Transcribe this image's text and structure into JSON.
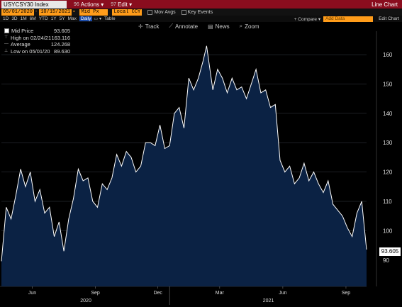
{
  "header": {
    "ticker": "USYCSY30 Index",
    "actions_num": "96",
    "actions_label": "Actions ▾",
    "edit_num": "97",
    "edit_label": "Edit ▾",
    "title": "Line Chart"
  },
  "controls": {
    "start_date": "05/01/2020",
    "end_date": "10/15/2021",
    "field": "Mid Px",
    "currency": "Local CCY",
    "mov_avgs": "Mov Avgs",
    "key_events": "Key Events",
    "periods": [
      "1D",
      "3D",
      "1M",
      "6M",
      "YTD",
      "1Y",
      "5Y",
      "Max"
    ],
    "frequency": "Daily",
    "table_label": "Table",
    "compare": "+ Compare ▾",
    "add_data": "Add Data",
    "edit_chart": "Edit Chart"
  },
  "toolbar": {
    "track": "Track",
    "annotate": "Annotate",
    "news": "News",
    "zoom": "Zoom"
  },
  "legend": {
    "mid_label": "Mid Price",
    "mid_value": "93.605",
    "high_label": "High on 02/24/21",
    "high_value": "163.116",
    "avg_label": "Average",
    "avg_value": "124.268",
    "low_label": "Low on 05/01/20",
    "low_value": "89.630"
  },
  "chart_data": {
    "type": "area",
    "y_ticks": [
      90,
      100,
      110,
      120,
      130,
      140,
      150,
      160
    ],
    "ylim": [
      81,
      168
    ],
    "last_value": "93.605",
    "month_labels": [
      "Jun",
      "Sep",
      "Dec",
      "Mar",
      "Jun",
      "Sep"
    ],
    "year_labels": [
      "2020",
      "2021"
    ],
    "colors": {
      "fill": "#0b2244",
      "line": "#ffffff",
      "grid": "#3a3f4a"
    },
    "series": [
      {
        "x": [
          "2020-05-01",
          "2020-05-08",
          "2020-05-15",
          "2020-05-22",
          "2020-05-29",
          "2020-06-05",
          "2020-06-12",
          "2020-06-19",
          "2020-06-26",
          "2020-07-03",
          "2020-07-10",
          "2020-07-17",
          "2020-07-24",
          "2020-07-31",
          "2020-08-07",
          "2020-08-14",
          "2020-08-21",
          "2020-08-28",
          "2020-09-04",
          "2020-09-11",
          "2020-09-18",
          "2020-09-25",
          "2020-10-02",
          "2020-10-09",
          "2020-10-16",
          "2020-10-23",
          "2020-10-30",
          "2020-11-06",
          "2020-11-13",
          "2020-11-20",
          "2020-11-27",
          "2020-12-04",
          "2020-12-11",
          "2020-12-18",
          "2020-12-25",
          "2021-01-01",
          "2021-01-08",
          "2021-01-15",
          "2021-01-22",
          "2021-01-29",
          "2021-02-05",
          "2021-02-12",
          "2021-02-19",
          "2021-02-24",
          "2021-03-05",
          "2021-03-12",
          "2021-03-19",
          "2021-03-26",
          "2021-04-02",
          "2021-04-09",
          "2021-04-16",
          "2021-04-23",
          "2021-04-30",
          "2021-05-07",
          "2021-05-14",
          "2021-05-21",
          "2021-05-28",
          "2021-06-04",
          "2021-06-11",
          "2021-06-18",
          "2021-06-25",
          "2021-07-02",
          "2021-07-09",
          "2021-07-16",
          "2021-07-23",
          "2021-07-30",
          "2021-08-06",
          "2021-08-13",
          "2021-08-20",
          "2021-08-27",
          "2021-09-03",
          "2021-09-10",
          "2021-09-17",
          "2021-09-24",
          "2021-10-01",
          "2021-10-08",
          "2021-10-15"
        ],
        "y": [
          89.6,
          108,
          104,
          112,
          121,
          115,
          120,
          110,
          114,
          106,
          108,
          98,
          103,
          93,
          104,
          111,
          121,
          117,
          118,
          110,
          108,
          116,
          114,
          118,
          126,
          122,
          127,
          125,
          120,
          122,
          130,
          130,
          129,
          136,
          128,
          129,
          140,
          142,
          135,
          152,
          148,
          152,
          158,
          163,
          148,
          155,
          152,
          147,
          152,
          148,
          149,
          145,
          150,
          155,
          147,
          148,
          142,
          143,
          124,
          120,
          122,
          116,
          118,
          123,
          117,
          120,
          116,
          113,
          117,
          109,
          107,
          105,
          101,
          98,
          106,
          110,
          93.6
        ]
      }
    ]
  }
}
